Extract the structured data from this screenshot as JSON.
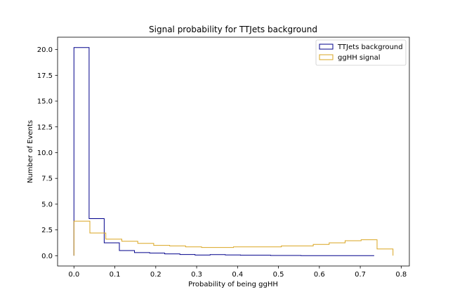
{
  "chart_data": {
    "type": "histogram-step",
    "title": "Signal probability for TTJets background",
    "xlabel": "Probability of being ggHH",
    "ylabel": "Number of Events",
    "xlim": [
      -0.04,
      0.82
    ],
    "ylim": [
      -1.0,
      21.2
    ],
    "x_ticks": [
      {
        "value": 0.0,
        "label": "0.0"
      },
      {
        "value": 0.1,
        "label": "0.1"
      },
      {
        "value": 0.2,
        "label": "0.2"
      },
      {
        "value": 0.3,
        "label": "0.3"
      },
      {
        "value": 0.4,
        "label": "0.4"
      },
      {
        "value": 0.5,
        "label": "0.5"
      },
      {
        "value": 0.6,
        "label": "0.6"
      },
      {
        "value": 0.7,
        "label": "0.7"
      },
      {
        "value": 0.8,
        "label": "0.8"
      }
    ],
    "y_ticks": [
      {
        "value": 0.0,
        "label": "0.0"
      },
      {
        "value": 2.5,
        "label": "2.5"
      },
      {
        "value": 5.0,
        "label": "5.0"
      },
      {
        "value": 7.5,
        "label": "7.5"
      },
      {
        "value": 10.0,
        "label": "10.0"
      },
      {
        "value": 12.5,
        "label": "12.5"
      },
      {
        "value": 15.0,
        "label": "15.0"
      },
      {
        "value": 17.5,
        "label": "17.5"
      },
      {
        "value": 20.0,
        "label": "20.0"
      }
    ],
    "grid": false,
    "legend_position": "top-right",
    "series": [
      {
        "name": "TTJets background",
        "color": "#00008b",
        "edges": [
          0.0,
          0.037,
          0.074,
          0.111,
          0.148,
          0.185,
          0.222,
          0.259,
          0.296,
          0.333,
          0.37,
          0.407,
          0.444,
          0.481,
          0.518,
          0.555,
          0.592,
          0.629,
          0.666,
          0.703,
          0.734
        ],
        "values": [
          20.2,
          3.6,
          1.25,
          0.5,
          0.3,
          0.25,
          0.18,
          0.12,
          0.06,
          0.1,
          0.07,
          0.05,
          0.05,
          0.02,
          0.02,
          0.01,
          0.01,
          0.01,
          0.01,
          0.0
        ]
      },
      {
        "name": "ggHH signal",
        "color": "#daa520",
        "edges": [
          0.0,
          0.039,
          0.078,
          0.117,
          0.156,
          0.195,
          0.234,
          0.273,
          0.312,
          0.351,
          0.39,
          0.429,
          0.468,
          0.507,
          0.546,
          0.585,
          0.624,
          0.663,
          0.702,
          0.741,
          0.78
        ],
        "values": [
          3.35,
          2.2,
          1.6,
          1.4,
          1.2,
          1.0,
          0.95,
          0.85,
          0.8,
          0.8,
          0.85,
          0.85,
          0.85,
          0.95,
          0.95,
          1.1,
          1.25,
          1.45,
          1.55,
          0.65
        ]
      }
    ]
  }
}
